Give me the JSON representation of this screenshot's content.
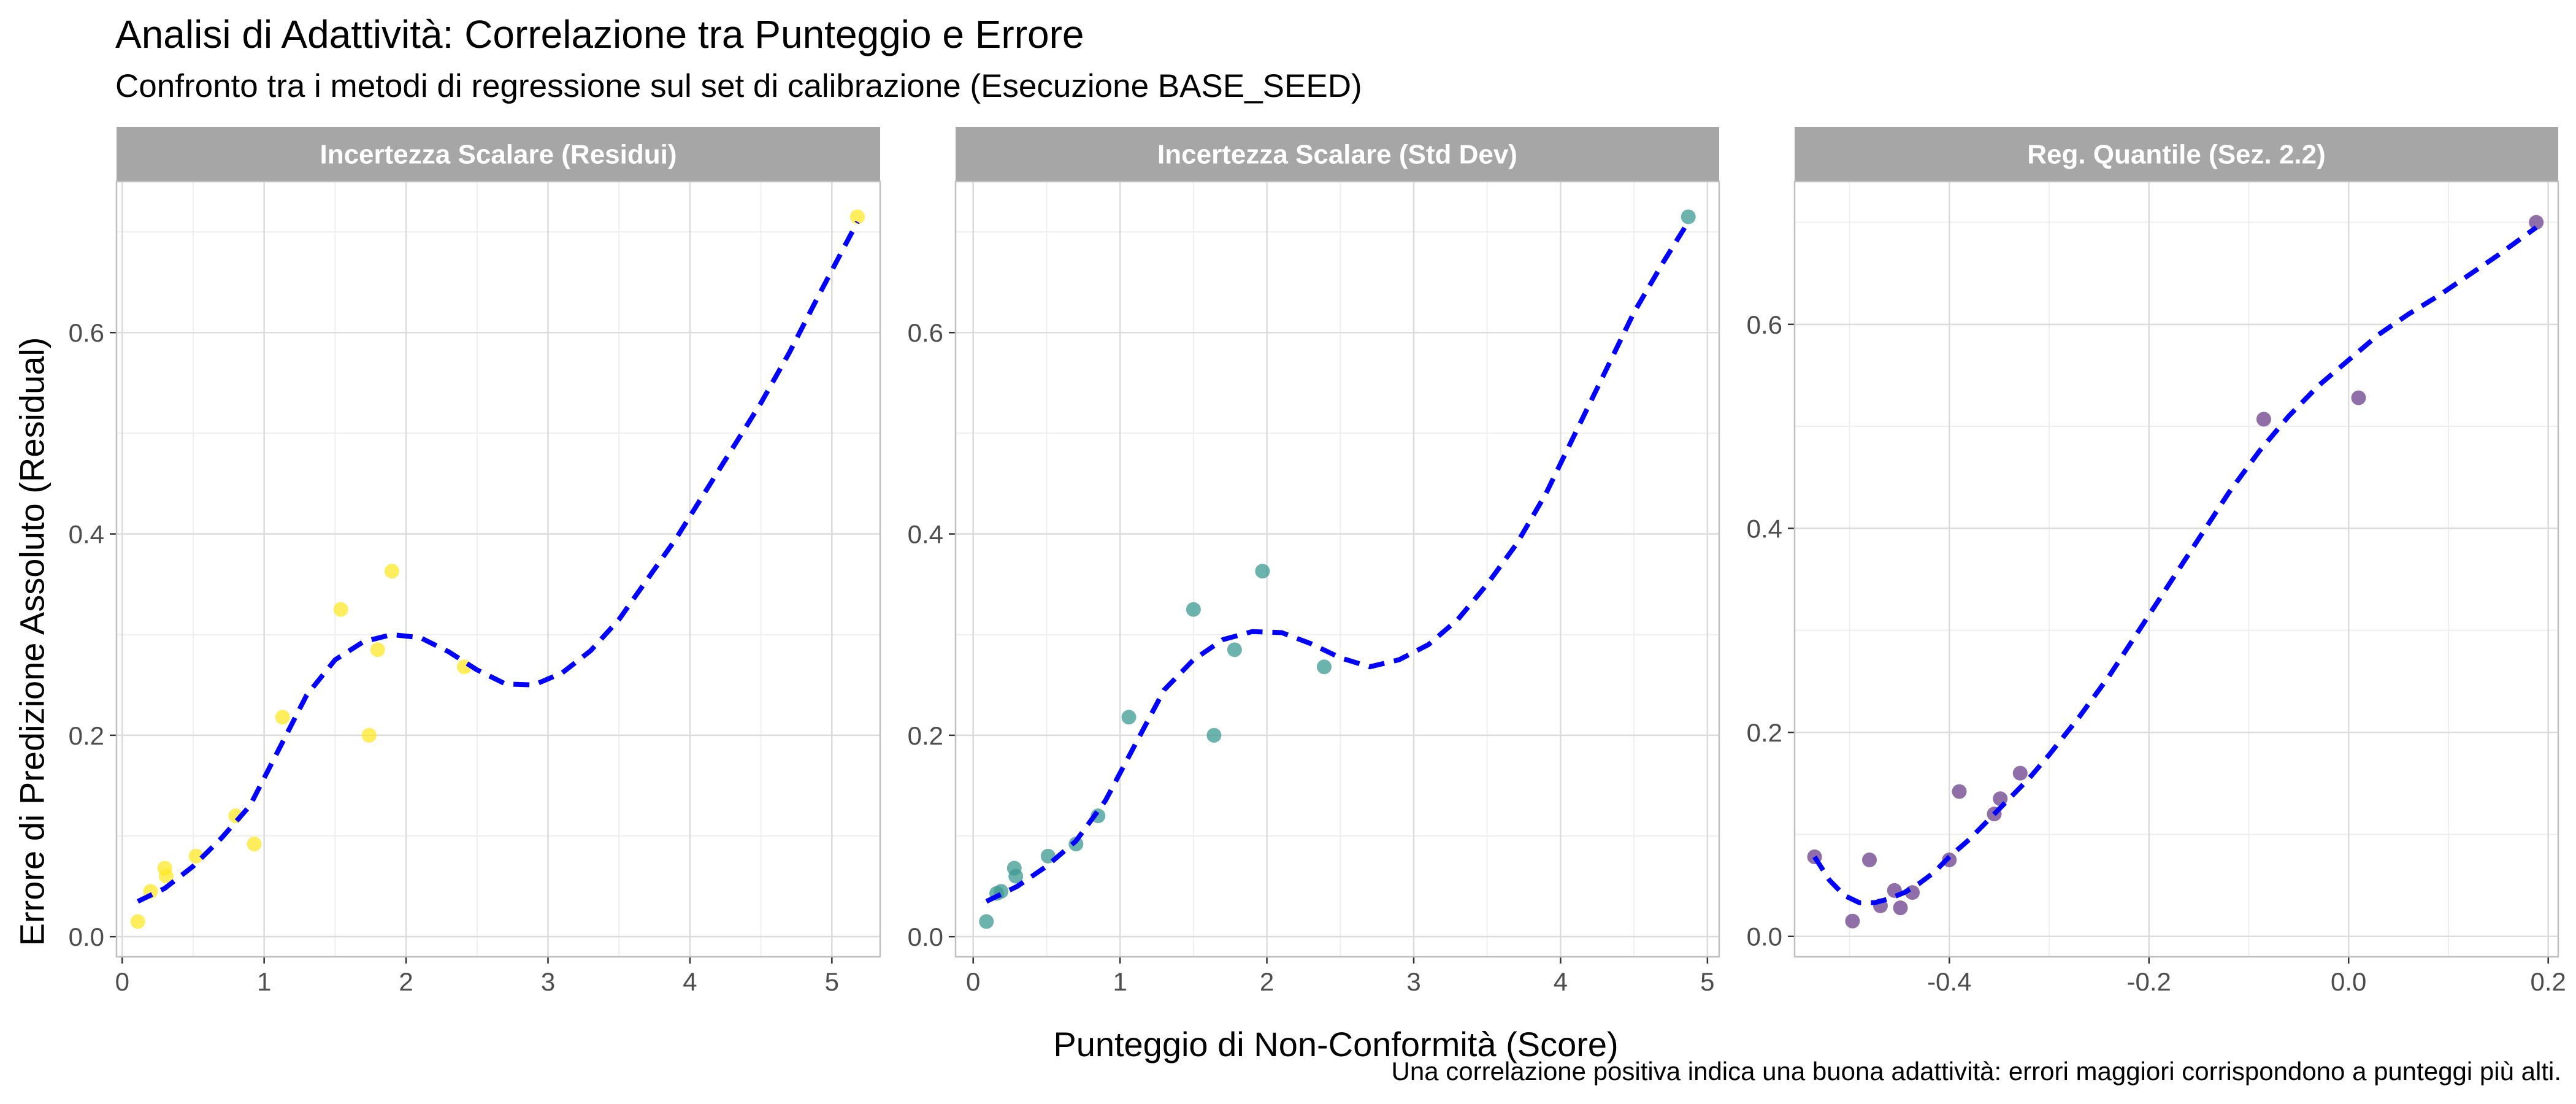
{
  "title": "Analisi di Adattività: Correlazione tra Punteggio e Errore",
  "subtitle": "Confronto tra i metodi di regressione sul set di calibrazione (Esecuzione BASE_SEED)",
  "caption": "Una correlazione positiva indica una buona adattività: errori maggiori corrispondono a punteggi più alti.",
  "colors": {
    "strip_bg": "#a6a6a6",
    "grid_major": "#dcdcdc",
    "grid_minor": "#efefef",
    "panel_border": "#bfbfbf",
    "trend_line": "#0000ff"
  },
  "chart_data": {
    "type": "scatter",
    "layout": "facets",
    "xlabel": "Punteggio di Non-Conformità (Score)",
    "ylabel": "Errore di Predizione Assoluto (Residual)",
    "grid": true,
    "trend_line": "dashed smooth fit",
    "panels": [
      {
        "strip": "Incertezza Scalare (Residui)",
        "point_color": "#fde725",
        "xlim": [
          -0.04,
          5.34
        ],
        "ylim": [
          -0.02,
          0.75
        ],
        "xticks": [
          0,
          1,
          2,
          3,
          4,
          5
        ],
        "yticks": [
          0.0,
          0.2,
          0.4,
          0.6
        ],
        "ytick_labels": [
          "0.0",
          "0.2",
          "0.4",
          "0.6"
        ],
        "points": [
          [
            0.11,
            0.015
          ],
          [
            0.2,
            0.045
          ],
          [
            0.3,
            0.068
          ],
          [
            0.31,
            0.06
          ],
          [
            0.52,
            0.08
          ],
          [
            0.8,
            0.12
          ],
          [
            0.93,
            0.092
          ],
          [
            1.13,
            0.218
          ],
          [
            1.54,
            0.325
          ],
          [
            1.74,
            0.2
          ],
          [
            1.8,
            0.285
          ],
          [
            1.9,
            0.363
          ],
          [
            2.41,
            0.268
          ],
          [
            5.18,
            0.715
          ]
        ],
        "trend": [
          [
            0.11,
            0.035
          ],
          [
            0.3,
            0.048
          ],
          [
            0.5,
            0.07
          ],
          [
            0.7,
            0.098
          ],
          [
            0.9,
            0.13
          ],
          [
            1.1,
            0.185
          ],
          [
            1.3,
            0.24
          ],
          [
            1.5,
            0.275
          ],
          [
            1.7,
            0.293
          ],
          [
            1.9,
            0.3
          ],
          [
            2.1,
            0.297
          ],
          [
            2.3,
            0.283
          ],
          [
            2.5,
            0.265
          ],
          [
            2.7,
            0.251
          ],
          [
            2.9,
            0.25
          ],
          [
            3.1,
            0.262
          ],
          [
            3.3,
            0.284
          ],
          [
            3.5,
            0.315
          ],
          [
            3.7,
            0.355
          ],
          [
            3.9,
            0.395
          ],
          [
            4.1,
            0.44
          ],
          [
            4.3,
            0.485
          ],
          [
            4.5,
            0.53
          ],
          [
            4.7,
            0.58
          ],
          [
            4.9,
            0.635
          ],
          [
            5.18,
            0.71
          ]
        ]
      },
      {
        "strip": "Incertezza Scalare (Std Dev)",
        "point_color": "#3c9a92",
        "xlim": [
          -0.12,
          5.08
        ],
        "ylim": [
          -0.02,
          0.75
        ],
        "xticks": [
          0,
          1,
          2,
          3,
          4,
          5
        ],
        "yticks": [
          0.0,
          0.2,
          0.4,
          0.6
        ],
        "ytick_labels": [
          "0.0",
          "0.2",
          "0.4",
          "0.6"
        ],
        "points": [
          [
            0.09,
            0.015
          ],
          [
            0.16,
            0.043
          ],
          [
            0.19,
            0.045
          ],
          [
            0.28,
            0.068
          ],
          [
            0.29,
            0.06
          ],
          [
            0.51,
            0.08
          ],
          [
            0.7,
            0.092
          ],
          [
            0.85,
            0.12
          ],
          [
            1.06,
            0.218
          ],
          [
            1.5,
            0.325
          ],
          [
            1.64,
            0.2
          ],
          [
            1.78,
            0.285
          ],
          [
            1.97,
            0.363
          ],
          [
            2.39,
            0.268
          ],
          [
            4.87,
            0.715
          ]
        ],
        "trend": [
          [
            0.09,
            0.035
          ],
          [
            0.3,
            0.05
          ],
          [
            0.5,
            0.07
          ],
          [
            0.7,
            0.095
          ],
          [
            0.9,
            0.135
          ],
          [
            1.1,
            0.19
          ],
          [
            1.3,
            0.245
          ],
          [
            1.5,
            0.275
          ],
          [
            1.7,
            0.295
          ],
          [
            1.9,
            0.303
          ],
          [
            2.1,
            0.302
          ],
          [
            2.3,
            0.291
          ],
          [
            2.5,
            0.277
          ],
          [
            2.7,
            0.268
          ],
          [
            2.9,
            0.275
          ],
          [
            3.1,
            0.29
          ],
          [
            3.3,
            0.315
          ],
          [
            3.5,
            0.35
          ],
          [
            3.7,
            0.39
          ],
          [
            3.9,
            0.44
          ],
          [
            4.1,
            0.5
          ],
          [
            4.3,
            0.56
          ],
          [
            4.5,
            0.62
          ],
          [
            4.7,
            0.67
          ],
          [
            4.87,
            0.71
          ]
        ]
      },
      {
        "strip": "Reg. Quantile (Sez. 2.2)",
        "point_color": "#6b3d8a",
        "xlim": [
          -0.555,
          0.21
        ],
        "ylim": [
          -0.02,
          0.74
        ],
        "xticks": [
          -0.4,
          -0.2,
          0.0,
          0.2
        ],
        "xtick_labels": [
          "-0.4",
          "-0.2",
          "0.0",
          "0.2"
        ],
        "yticks": [
          0.0,
          0.2,
          0.4,
          0.6
        ],
        "ytick_labels": [
          "0.0",
          "0.2",
          "0.4",
          "0.6"
        ],
        "points": [
          [
            -0.535,
            0.078
          ],
          [
            -0.497,
            0.015
          ],
          [
            -0.48,
            0.075
          ],
          [
            -0.469,
            0.03
          ],
          [
            -0.455,
            0.045
          ],
          [
            -0.449,
            0.028
          ],
          [
            -0.437,
            0.043
          ],
          [
            -0.4,
            0.075
          ],
          [
            -0.39,
            0.142
          ],
          [
            -0.355,
            0.12
          ],
          [
            -0.349,
            0.135
          ],
          [
            -0.329,
            0.16
          ],
          [
            -0.085,
            0.507
          ],
          [
            0.01,
            0.528
          ],
          [
            0.188,
            0.7
          ]
        ],
        "trend": [
          [
            -0.535,
            0.078
          ],
          [
            -0.52,
            0.055
          ],
          [
            -0.505,
            0.04
          ],
          [
            -0.49,
            0.033
          ],
          [
            -0.475,
            0.033
          ],
          [
            -0.46,
            0.037
          ],
          [
            -0.445,
            0.043
          ],
          [
            -0.43,
            0.052
          ],
          [
            -0.415,
            0.063
          ],
          [
            -0.4,
            0.078
          ],
          [
            -0.38,
            0.095
          ],
          [
            -0.36,
            0.115
          ],
          [
            -0.34,
            0.135
          ],
          [
            -0.32,
            0.155
          ],
          [
            -0.3,
            0.178
          ],
          [
            -0.27,
            0.215
          ],
          [
            -0.24,
            0.255
          ],
          [
            -0.21,
            0.3
          ],
          [
            -0.18,
            0.345
          ],
          [
            -0.15,
            0.39
          ],
          [
            -0.12,
            0.435
          ],
          [
            -0.09,
            0.475
          ],
          [
            -0.06,
            0.51
          ],
          [
            -0.03,
            0.54
          ],
          [
            0.0,
            0.565
          ],
          [
            0.03,
            0.59
          ],
          [
            0.06,
            0.61
          ],
          [
            0.09,
            0.628
          ],
          [
            0.12,
            0.648
          ],
          [
            0.15,
            0.668
          ],
          [
            0.188,
            0.695
          ]
        ]
      }
    ]
  }
}
